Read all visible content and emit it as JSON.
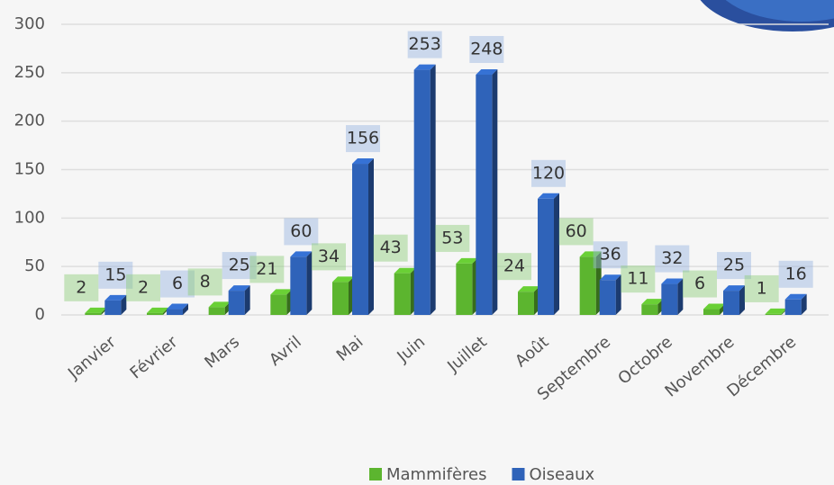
{
  "chart_data": {
    "type": "bar",
    "categories": [
      "Janvier",
      "Février",
      "Mars",
      "Avril",
      "Mai",
      "Juin",
      "Juillet",
      "Août",
      "Septembre",
      "Octobre",
      "Novembre",
      "Décembre"
    ],
    "series": [
      {
        "name": "Mammifères",
        "color": "#5cb52f",
        "values": [
          2,
          2,
          8,
          21,
          34,
          43,
          53,
          24,
          60,
          11,
          6,
          1
        ]
      },
      {
        "name": "Oiseaux",
        "color": "#2f63b9",
        "values": [
          15,
          6,
          25,
          60,
          156,
          253,
          248,
          120,
          36,
          32,
          25,
          16
        ]
      }
    ],
    "ylim": [
      0,
      300
    ],
    "yticks": [
      0,
      50,
      100,
      150,
      200,
      250,
      300
    ],
    "grid": true,
    "legend": "bottom"
  }
}
